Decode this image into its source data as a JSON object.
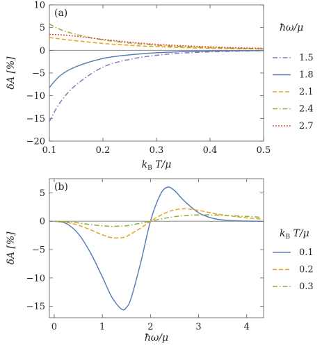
{
  "chart_data": [
    {
      "panel": "(a)",
      "type": "line",
      "xlabel": "k_B T/μ",
      "ylabel": "δA [%]",
      "xlim": [
        0.1,
        0.5
      ],
      "ylim": [
        -20,
        10
      ],
      "xticks": [
        "0.1",
        "0.2",
        "0.3",
        "0.4",
        "0.5"
      ],
      "yticks": [
        "10",
        "5",
        "0",
        "−5",
        "−10",
        "−15",
        "−20"
      ],
      "legend_title": "ħω/μ",
      "legend_position": "right",
      "x": [
        0.1,
        0.12,
        0.15,
        0.2,
        0.25,
        0.3,
        0.35,
        0.4,
        0.45,
        0.5
      ],
      "series": [
        {
          "name": "1.5",
          "color": "#8877bb",
          "dash": "dashdot",
          "values": [
            -15.7,
            -11.5,
            -7.6,
            -3.7,
            -2.0,
            -1.1,
            -0.6,
            -0.35,
            -0.2,
            -0.1
          ]
        },
        {
          "name": "1.8",
          "color": "#5b7fb5",
          "dash": "solid",
          "values": [
            -8.2,
            -5.6,
            -3.6,
            -1.8,
            -1.0,
            -0.55,
            -0.3,
            -0.17,
            -0.1,
            -0.05
          ]
        },
        {
          "name": "2.1",
          "color": "#e8a020",
          "dash": "dashed",
          "values": [
            2.8,
            2.5,
            2.1,
            1.5,
            1.1,
            0.8,
            0.6,
            0.45,
            0.35,
            0.3
          ]
        },
        {
          "name": "2.4",
          "color": "#8fae3a",
          "dash": "dashdot",
          "values": [
            5.8,
            4.6,
            3.5,
            2.3,
            1.6,
            1.1,
            0.8,
            0.6,
            0.45,
            0.35
          ]
        },
        {
          "name": "2.7",
          "color": "#e8452e",
          "dash": "dotted",
          "values": [
            3.5,
            3.4,
            3.1,
            2.4,
            1.8,
            1.3,
            1.0,
            0.75,
            0.55,
            0.45
          ]
        }
      ]
    },
    {
      "panel": "(b)",
      "type": "line",
      "xlabel": "ħω/μ",
      "ylabel": "δA [%]",
      "xlim": [
        -0.1,
        4.35
      ],
      "ylim": [
        -17,
        7.5
      ],
      "xticks": [
        "0",
        "1",
        "2",
        "3",
        "4"
      ],
      "yticks": [
        "5",
        "0",
        "−5",
        "−10",
        "−15"
      ],
      "legend_title": "k_B T/μ",
      "legend_position": "right",
      "x": [
        0.0,
        0.25,
        0.5,
        0.75,
        1.0,
        1.2,
        1.4,
        1.5,
        1.6,
        1.8,
        2.0,
        2.2,
        2.35,
        2.5,
        2.7,
        3.0,
        3.3,
        3.6,
        4.0,
        4.3
      ],
      "series": [
        {
          "name": "0.1",
          "color": "#5b7fb5",
          "dash": "solid",
          "values": [
            0,
            -0.4,
            -2.2,
            -5.5,
            -9.8,
            -13.4,
            -15.5,
            -15.2,
            -13.5,
            -7.2,
            0,
            4.6,
            6.0,
            5.4,
            3.6,
            1.5,
            0.5,
            0.15,
            0.02,
            0
          ]
        },
        {
          "name": "0.2",
          "color": "#e8a020",
          "dash": "dashed",
          "values": [
            0,
            -0.2,
            -0.7,
            -1.5,
            -2.4,
            -2.9,
            -2.9,
            -2.7,
            -2.2,
            -1.2,
            0,
            1.0,
            1.6,
            2.0,
            2.2,
            1.9,
            1.4,
            1.0,
            0.6,
            0.4
          ]
        },
        {
          "name": "0.3",
          "color": "#8fae3a",
          "dash": "dashdot",
          "values": [
            0,
            -0.1,
            -0.3,
            -0.6,
            -0.8,
            -0.9,
            -0.85,
            -0.8,
            -0.65,
            -0.35,
            0,
            0.35,
            0.6,
            0.8,
            1.0,
            1.1,
            1.1,
            1.0,
            0.85,
            0.7
          ]
        }
      ]
    }
  ]
}
